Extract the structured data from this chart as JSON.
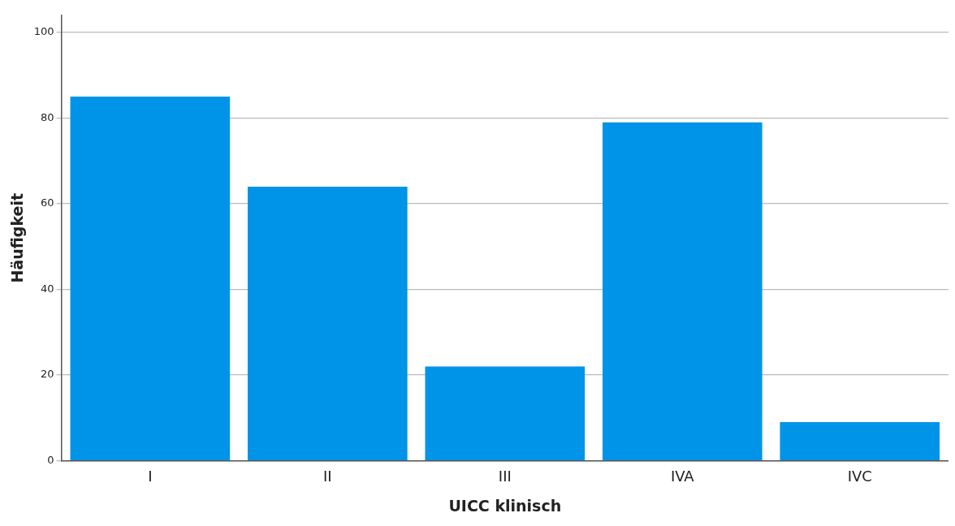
{
  "chart_data": {
    "type": "bar",
    "xlabel": "UICC klinisch",
    "ylabel": "Häufigkeit",
    "categories": [
      "I",
      "II",
      "III",
      "IVA",
      "IVC"
    ],
    "values": [
      85,
      64,
      22,
      79,
      9
    ],
    "color": "#0094e8",
    "ylim": [
      0,
      104
    ],
    "yticks": [
      0,
      20,
      40,
      60,
      80,
      100
    ],
    "grid": "y",
    "legend": false
  }
}
